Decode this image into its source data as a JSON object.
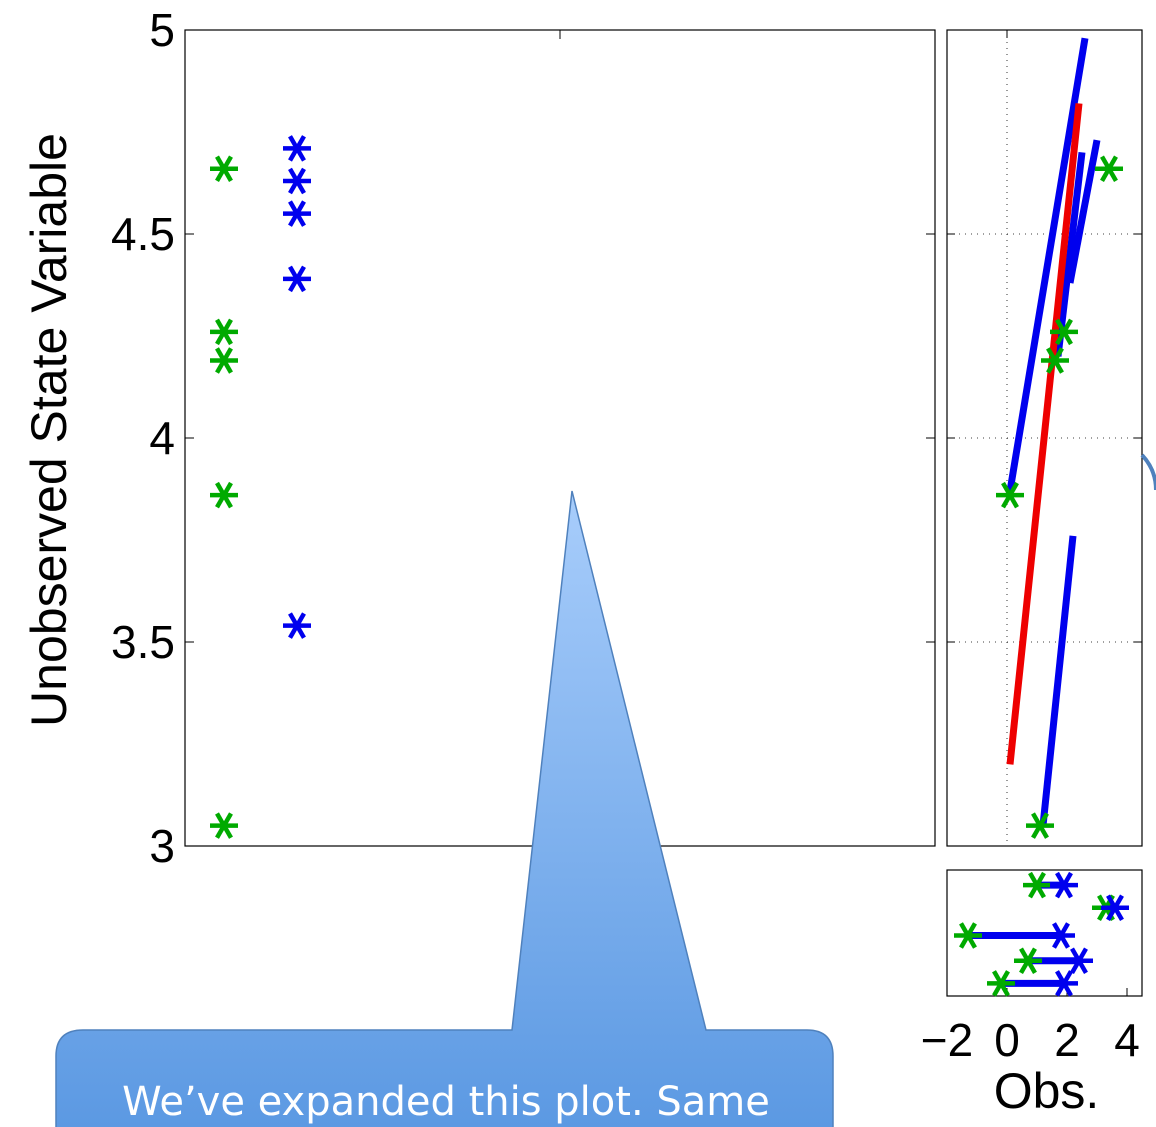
{
  "chart_data": [
    {
      "type": "scatter",
      "panel": "main",
      "ylabel": "Unobserved State Variable",
      "xlabel": "",
      "ylim": [
        3,
        5
      ],
      "yticks": [
        "3",
        "3.5",
        "4",
        "4.5",
        "5"
      ],
      "grid": false,
      "series": [
        {
          "color": "#00aa00",
          "x": [
            1,
            1,
            1,
            1,
            1
          ],
          "values": [
            4.66,
            4.26,
            4.19,
            3.86,
            3.05
          ]
        },
        {
          "color": "#0000ee",
          "x": [
            2,
            2,
            2,
            2,
            2
          ],
          "values": [
            4.71,
            4.63,
            4.55,
            4.39,
            3.54
          ]
        }
      ]
    },
    {
      "type": "line",
      "panel": "right",
      "ylim": [
        3,
        5
      ],
      "xlim": [
        -2,
        4.5
      ],
      "grid": true,
      "points": {
        "color": "#00aa00",
        "x": [
          3.4,
          1.9,
          1.6,
          0.1,
          1.1
        ],
        "y": [
          4.66,
          4.26,
          4.19,
          3.86,
          3.05
        ]
      },
      "lines": [
        {
          "color": "#0000ee",
          "x": [
            0.1,
            2.6
          ],
          "y": [
            3.87,
            4.98
          ]
        },
        {
          "color": "#0000ee",
          "x": [
            1.7,
            2.5
          ],
          "y": [
            4.2,
            4.7
          ]
        },
        {
          "color": "#0000ee",
          "x": [
            2.1,
            3.0
          ],
          "y": [
            4.38,
            4.73
          ]
        },
        {
          "color": "#0000ee",
          "x": [
            1.2,
            2.2
          ],
          "y": [
            3.05,
            3.76
          ]
        },
        {
          "color": "#ee0000",
          "x": [
            0.1,
            2.4
          ],
          "y": [
            3.2,
            4.82
          ]
        }
      ]
    },
    {
      "type": "scatter",
      "panel": "bottom",
      "xlabel": "Obs.",
      "xlim": [
        -2,
        4.5
      ],
      "xticks": [
        "−2",
        "0",
        "2",
        "4"
      ],
      "pairs": [
        {
          "y": 0.88,
          "green": 1.0,
          "blue": 1.9
        },
        {
          "y": 0.7,
          "green": 3.3,
          "blue": 3.6
        },
        {
          "y": 0.48,
          "green": -1.3,
          "blue": 1.8
        },
        {
          "y": 0.28,
          "green": 0.7,
          "blue": 2.4
        },
        {
          "y": 0.1,
          "green": -0.2,
          "blue": 1.9
        }
      ]
    }
  ],
  "callout": {
    "text": "We’ve expanded this plot. Same",
    "fill_top": "#a8cdfb",
    "fill_bottom": "#5a98e2",
    "stroke": "#4f81bd"
  }
}
